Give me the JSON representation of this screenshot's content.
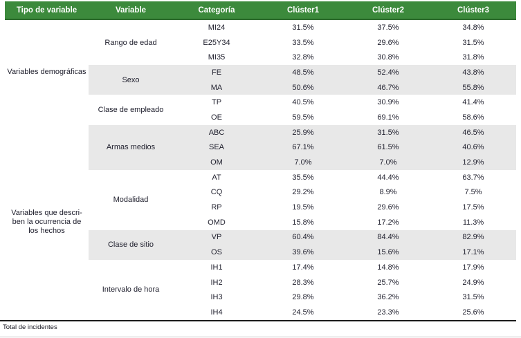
{
  "colors": {
    "header_bg": "#3c8a3c",
    "header_border": "#2d6b2d",
    "band_bg": "#e8e8e8",
    "rule": "#1a1a1a",
    "bottom_rule": "#c9c9c9",
    "text": "#1d1d2b",
    "header_text": "#ffffff"
  },
  "table": {
    "headers": [
      "Tipo de variable",
      "Variable",
      "Categoría",
      "Clúster1",
      "Clúster2",
      "Clúster3"
    ],
    "groups": [
      {
        "tipo_lines": [
          "Variables demográficas"
        ],
        "variables": [
          {
            "name": "Rango de edad",
            "shaded": false,
            "rows": [
              [
                "MI24",
                "31.5%",
                "37.5%",
                "34.8%"
              ],
              [
                "E25Y34",
                "33.5%",
                "29.6%",
                "31.5%"
              ],
              [
                "MI35",
                "32.8%",
                "30.8%",
                "31.8%"
              ]
            ]
          },
          {
            "name": "Sexo",
            "shaded": true,
            "rows": [
              [
                "FE",
                "48.5%",
                "52.4%",
                "43.8%"
              ],
              [
                "MA",
                "50.6%",
                "46.7%",
                "55.8%"
              ]
            ]
          },
          {
            "name": "Clase de empleado",
            "shaded": false,
            "rows": [
              [
                "TP",
                "40.5%",
                "30.9%",
                "41.4%"
              ],
              [
                "OE",
                "59.5%",
                "69.1%",
                "58.6%"
              ]
            ]
          }
        ]
      },
      {
        "tipo_lines": [
          "Variables que descri-",
          "ben la ocurrencia de",
          "los hechos"
        ],
        "variables": [
          {
            "name": "Armas medios",
            "shaded": true,
            "rows": [
              [
                "ABC",
                "25.9%",
                "31.5%",
                "46.5%"
              ],
              [
                "SEA",
                "67.1%",
                "61.5%",
                "40.6%"
              ],
              [
                "OM",
                "7.0%",
                "7.0%",
                "12.9%"
              ]
            ]
          },
          {
            "name": "Modalidad",
            "shaded": false,
            "rows": [
              [
                "AT",
                "35.5%",
                "44.4%",
                "63.7%"
              ],
              [
                "CQ",
                "29.2%",
                "8.9%",
                "7.5%"
              ],
              [
                "RP",
                "19.5%",
                "29.6%",
                "17.5%"
              ],
              [
                "OMD",
                "15.8%",
                "17.2%",
                "11.3%"
              ]
            ]
          },
          {
            "name": "Clase de sitio",
            "shaded": true,
            "rows": [
              [
                "VP",
                "60.4%",
                "84.4%",
                "82.9%"
              ],
              [
                "OS",
                "39.6%",
                "15.6%",
                "17.1%"
              ]
            ]
          },
          {
            "name": "Intervalo de hora",
            "shaded": false,
            "rows": [
              [
                "IH1",
                "17.4%",
                "14.8%",
                "17.9%"
              ],
              [
                "IH2",
                "28.3%",
                "25.7%",
                "24.9%"
              ],
              [
                "IH3",
                "29.8%",
                "36.2%",
                "31.5%"
              ],
              [
                "IH4",
                "24.5%",
                "23.3%",
                "25.6%"
              ]
            ]
          }
        ]
      }
    ],
    "footnote": "Total de incidentes"
  }
}
